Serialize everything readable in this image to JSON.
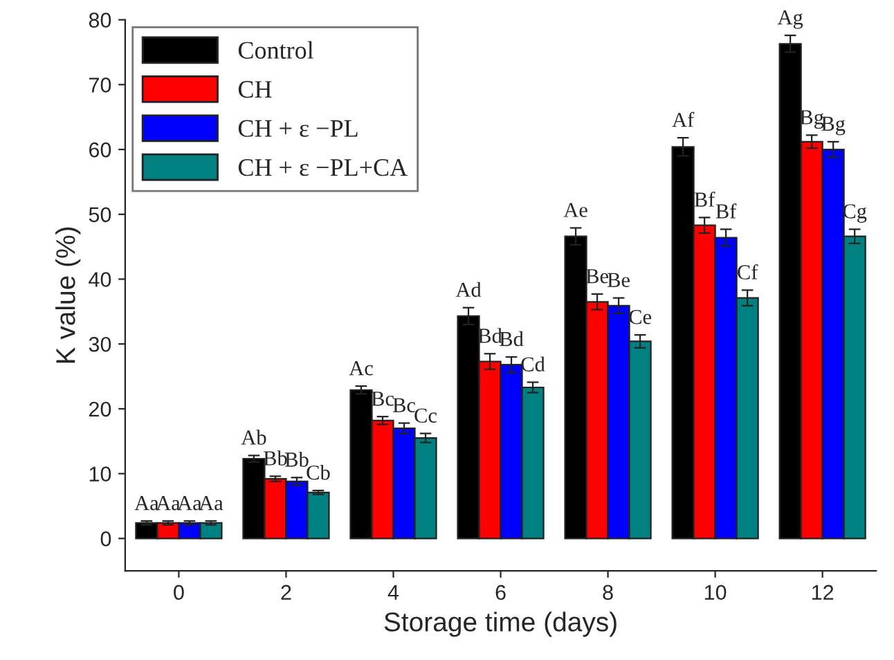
{
  "chart_data": {
    "type": "bar",
    "xlabel": "Storage time (days)",
    "ylabel": "K value (%)",
    "categories": [
      "0",
      "2",
      "4",
      "6",
      "8",
      "10",
      "12"
    ],
    "ylim": [
      -5,
      80
    ],
    "yticks": [
      0,
      10,
      20,
      30,
      40,
      50,
      60,
      70,
      80
    ],
    "grid": false,
    "legend": "top left",
    "series": [
      {
        "name": "Control",
        "color": "#000000",
        "values": [
          2.4,
          12.3,
          22.9,
          34.3,
          46.6,
          60.4,
          76.3
        ],
        "errors": [
          0.3,
          0.5,
          0.6,
          1.3,
          1.3,
          1.4,
          1.3
        ],
        "value_labels": [
          "Aa",
          "Ab",
          "Ac",
          "Ad",
          "Ae",
          "Af",
          "Ag"
        ]
      },
      {
        "name": "CH",
        "color": "#ff0000",
        "values": [
          2.4,
          9.2,
          18.2,
          27.3,
          36.5,
          48.3,
          61.2
        ],
        "errors": [
          0.3,
          0.4,
          0.6,
          1.2,
          1.2,
          1.2,
          1.0
        ],
        "value_labels": [
          "Aa",
          "Bb",
          "Bc",
          "Bd",
          "Be",
          "Bf",
          "Bg"
        ]
      },
      {
        "name": "CH + ε −PL",
        "color": "#0000ff",
        "values": [
          2.4,
          8.8,
          17.0,
          26.8,
          35.9,
          46.4,
          60.0
        ],
        "errors": [
          0.3,
          0.6,
          0.8,
          1.2,
          1.2,
          1.3,
          1.2
        ],
        "value_labels": [
          "Aa",
          "Bb",
          "Bc",
          "Bd",
          "Be",
          "Bf",
          "Bg"
        ]
      },
      {
        "name": "CH + ε −PL+CA",
        "color": "#008080",
        "values": [
          2.4,
          7.1,
          15.5,
          23.3,
          30.4,
          37.1,
          46.6
        ],
        "errors": [
          0.3,
          0.3,
          0.7,
          0.8,
          1.0,
          1.2,
          1.1
        ],
        "value_labels": [
          "Aa",
          "Cb",
          "Cc",
          "Cd",
          "Ce",
          "Cf",
          "Cg"
        ]
      }
    ]
  }
}
